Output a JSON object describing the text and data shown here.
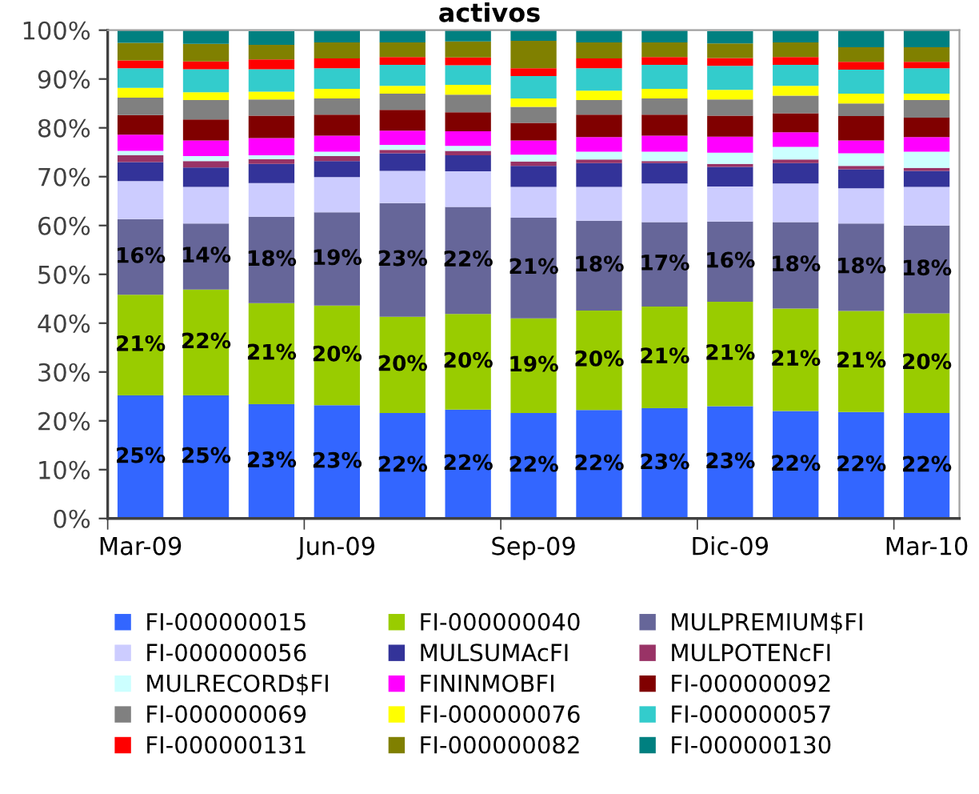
{
  "chart_data": {
    "type": "bar",
    "stacked": true,
    "title": "activos",
    "categories": [
      "Mar-09",
      null,
      null,
      "Jun-09",
      null,
      null,
      "Sep-09",
      null,
      null,
      "Dic-09",
      null,
      null,
      "Mar-10"
    ],
    "ylim": [
      0,
      100
    ],
    "yticks": [
      {
        "value": 0,
        "label": "0%"
      },
      {
        "value": 10,
        "label": "10%"
      },
      {
        "value": 20,
        "label": "20%"
      },
      {
        "value": 30,
        "label": "30%"
      },
      {
        "value": 40,
        "label": "40%"
      },
      {
        "value": 50,
        "label": "50%"
      },
      {
        "value": 60,
        "label": "60%"
      },
      {
        "value": 70,
        "label": "70%"
      },
      {
        "value": 80,
        "label": "80%"
      },
      {
        "value": 90,
        "label": "90%"
      },
      {
        "value": 100,
        "label": "100%"
      }
    ],
    "grid": false,
    "legend": "bottom",
    "series": [
      {
        "name": "FI-000000015",
        "color": "#3366ff",
        "values": [
          25.2,
          25.2,
          23.4,
          23.2,
          21.6,
          22.3,
          21.6,
          22.2,
          22.6,
          23.0,
          22.0,
          21.8,
          21.6
        ],
        "value_labels": [
          "25%",
          "25%",
          "23%",
          "23%",
          "22%",
          "22%",
          "22%",
          "22%",
          "23%",
          "23%",
          "22%",
          "22%",
          "22%"
        ]
      },
      {
        "name": "FI-000000040",
        "color": "#99cc00",
        "values": [
          20.6,
          21.7,
          20.7,
          20.4,
          19.7,
          19.6,
          19.4,
          20.4,
          20.8,
          21.4,
          21.0,
          20.7,
          20.4
        ],
        "value_labels": [
          "21%",
          "22%",
          "21%",
          "20%",
          "20%",
          "20%",
          "19%",
          "20%",
          "21%",
          "21%",
          "21%",
          "21%",
          "20%"
        ]
      },
      {
        "name": "MULPREMIUM$FI",
        "color": "#666699",
        "values": [
          15.5,
          13.5,
          17.7,
          19.1,
          23.3,
          21.9,
          20.6,
          18.4,
          17.3,
          16.4,
          17.7,
          17.9,
          18.0
        ],
        "value_labels": [
          "16%",
          "14%",
          "18%",
          "19%",
          "23%",
          "22%",
          "21%",
          "18%",
          "17%",
          "16%",
          "18%",
          "18%",
          "18%"
        ]
      },
      {
        "name": "FI-000000056",
        "color": "#ccccff",
        "values": [
          7.8,
          7.5,
          6.9,
          7.2,
          6.6,
          7.3,
          6.3,
          6.9,
          7.9,
          7.2,
          7.9,
          7.2,
          7.9
        ]
      },
      {
        "name": "MULSUMAcFI",
        "color": "#333399",
        "values": [
          3.9,
          4.0,
          3.9,
          3.3,
          3.6,
          3.3,
          4.3,
          4.9,
          4.2,
          4.0,
          4.2,
          3.9,
          3.3
        ]
      },
      {
        "name": "MULPOTENcFI",
        "color": "#993366",
        "values": [
          1.4,
          1.3,
          1.0,
          1.0,
          0.7,
          0.9,
          0.9,
          0.7,
          0.4,
          0.6,
          0.7,
          0.7,
          0.6
        ]
      },
      {
        "name": "MULRECORD$FI",
        "color": "#ccffff",
        "values": [
          0.9,
          1.0,
          0.8,
          0.9,
          1.0,
          1.0,
          1.4,
          1.6,
          1.9,
          2.3,
          2.6,
          2.6,
          3.3
        ]
      },
      {
        "name": "FININMOBFI",
        "color": "#ff00ff",
        "values": [
          3.3,
          3.2,
          3.5,
          3.3,
          2.9,
          3.0,
          2.9,
          3.0,
          3.3,
          3.3,
          3.0,
          2.6,
          3.0
        ]
      },
      {
        "name": "FI-000000092",
        "color": "#800000",
        "values": [
          4.0,
          4.3,
          4.6,
          4.3,
          4.3,
          3.9,
          3.6,
          4.6,
          4.3,
          4.3,
          3.9,
          5.0,
          4.0
        ]
      },
      {
        "name": "FI-000000069",
        "color": "#808080",
        "values": [
          3.6,
          4.0,
          3.3,
          3.3,
          3.3,
          3.6,
          3.3,
          3.0,
          3.3,
          3.3,
          3.6,
          2.6,
          3.6
        ]
      },
      {
        "name": "FI-000000076",
        "color": "#ffff00",
        "values": [
          2.0,
          1.6,
          1.6,
          2.0,
          1.6,
          2.0,
          1.7,
          1.9,
          2.0,
          2.0,
          2.0,
          2.0,
          1.3
        ]
      },
      {
        "name": "FI-000000057",
        "color": "#33cccc",
        "values": [
          4.0,
          4.7,
          4.6,
          4.2,
          4.3,
          4.0,
          4.6,
          4.6,
          4.9,
          4.9,
          4.3,
          4.9,
          5.2
        ]
      },
      {
        "name": "FI-000000131",
        "color": "#ff0000",
        "values": [
          1.6,
          1.6,
          2.0,
          2.0,
          1.6,
          1.6,
          1.6,
          2.0,
          1.6,
          1.6,
          1.6,
          1.6,
          1.3
        ]
      },
      {
        "name": "FI-000000082",
        "color": "#808000",
        "values": [
          3.6,
          3.6,
          3.0,
          3.3,
          3.0,
          3.3,
          5.6,
          3.3,
          3.0,
          3.0,
          3.0,
          3.0,
          3.0
        ]
      },
      {
        "name": "FI-000000130",
        "color": "#008080",
        "values": [
          2.6,
          2.8,
          2.8,
          2.5,
          2.5,
          2.5,
          2.5,
          2.5,
          2.5,
          2.5,
          2.5,
          3.5,
          3.5
        ]
      }
    ]
  }
}
